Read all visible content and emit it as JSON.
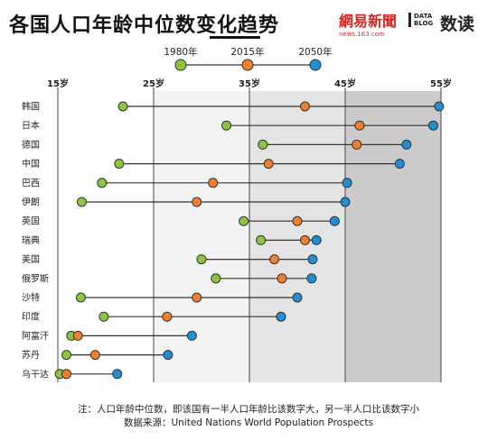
{
  "header": {
    "title": "各国人口年龄中位数变化趋势",
    "brand_name": "網易新聞",
    "brand_url": "news.163.com",
    "datablog_line1": "DATA",
    "datablog_line2": "BLOG",
    "datablog_cn": "数读"
  },
  "legend": [
    {
      "label": "1980年",
      "color": "#8cc63f"
    },
    {
      "label": "2015年",
      "color": "#f07f2e"
    },
    {
      "label": "2050年",
      "color": "#1f8fd6"
    }
  ],
  "footer": {
    "note": "注：人口年龄中位数，即该国有一半人口年龄比该数字大，另一半人口比该数字小",
    "source": "数据来源：United Nations World Population Prospects"
  },
  "chart_data": {
    "type": "dot",
    "x_ticks": [
      "15岁",
      "25岁",
      "35岁",
      "45岁",
      "55岁"
    ],
    "x_tick_values": [
      15,
      25,
      35,
      45,
      55
    ],
    "xlim": [
      15,
      55
    ],
    "grid": true,
    "legend_position": "top-center",
    "series": [
      {
        "name": "1980年",
        "color": "#8cc63f"
      },
      {
        "name": "2015年",
        "color": "#f07f2e"
      },
      {
        "name": "2050年",
        "color": "#1f8fd6"
      }
    ],
    "rows": [
      {
        "country": "韩国",
        "values": [
          21.8,
          40.8,
          54.8
        ]
      },
      {
        "country": "日本",
        "values": [
          32.6,
          46.5,
          54.2
        ]
      },
      {
        "country": "德国",
        "values": [
          36.4,
          46.2,
          51.4
        ]
      },
      {
        "country": "中国",
        "values": [
          21.4,
          37.0,
          50.7
        ]
      },
      {
        "country": "巴西",
        "values": [
          19.6,
          31.2,
          45.2
        ]
      },
      {
        "country": "伊朗",
        "values": [
          17.5,
          29.5,
          45.0
        ]
      },
      {
        "country": "英国",
        "values": [
          34.4,
          40.0,
          43.9
        ]
      },
      {
        "country": "瑞典",
        "values": [
          36.2,
          40.8,
          42.0
        ]
      },
      {
        "country": "美国",
        "values": [
          30.0,
          37.6,
          41.6
        ]
      },
      {
        "country": "俄罗斯",
        "values": [
          31.5,
          38.4,
          41.5
        ]
      },
      {
        "country": "沙特",
        "values": [
          17.4,
          29.5,
          40.0
        ]
      },
      {
        "country": "印度",
        "values": [
          19.8,
          26.4,
          38.3
        ]
      },
      {
        "country": "阿富汗",
        "values": [
          16.4,
          17.1,
          29.0
        ]
      },
      {
        "country": "苏丹",
        "values": [
          15.9,
          18.9,
          26.5
        ]
      },
      {
        "country": "乌干达",
        "values": [
          15.2,
          15.9,
          21.2
        ]
      }
    ]
  }
}
